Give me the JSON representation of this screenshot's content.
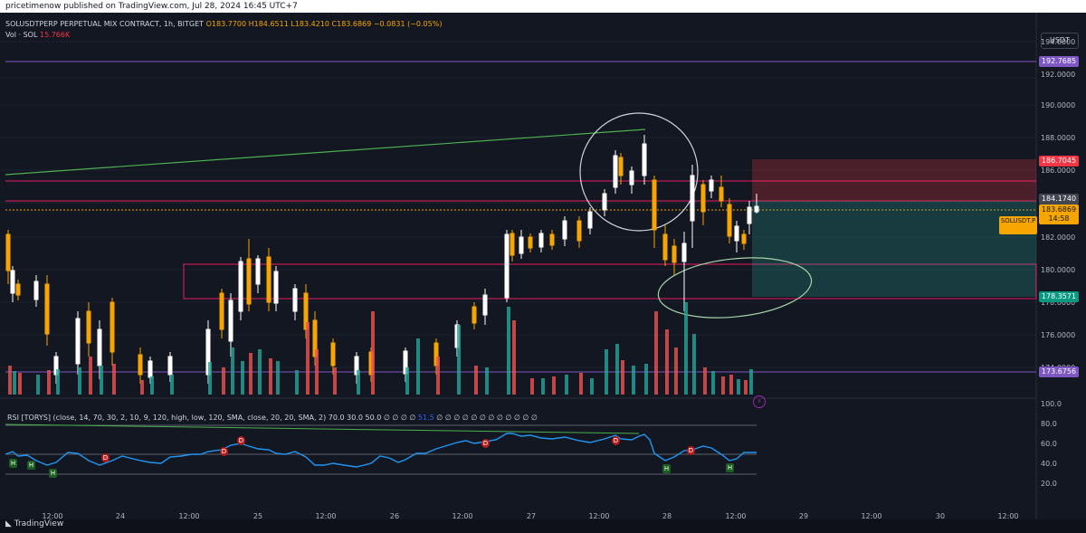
{
  "header": {
    "published_text": "pricetimenow published on TradingView.com, Jul 28, 2024 16:45 UTC+7"
  },
  "legend": {
    "symbol": "SOLUSDTPERP PERPETUAL MIX CONTRACT, 1h, BITGET",
    "open": "O183.7700",
    "high": "H184.6511",
    "low": "L183.4210",
    "close": "C183.6869",
    "change": "−0.0831 (−0.05%)",
    "volume_label": "Vol · SOL",
    "volume_value": "15.766K"
  },
  "rsi_legend": {
    "text": "RSI [TORYS] (close, 14, 70, 30, 2, 10, 9, 120, high, low, 120, SMA, close, 20, 20, SMA, 2)  70.0  30.0  50.0  ∅  ∅  ∅  ∅",
    "value": "51.5",
    "trail": "∅  ∅  ∅  ∅  ∅  ∅  ∅  ∅  ∅  ∅  ∅  ∅"
  },
  "currency_button": "USDT",
  "price_axis": [
    "194.0000",
    "192.0000",
    "190.0000",
    "188.0000",
    "186.0000",
    "182.0000",
    "180.0000",
    "178.0000",
    "176.0000",
    "174.0000"
  ],
  "price_labels": {
    "level_top": "192.7685",
    "target": "186.7045",
    "entry": "184.1740",
    "current": "183.6869",
    "countdown": "14:58",
    "stop": "178.3571",
    "level_bottom": "173.6756"
  },
  "symbol_badge": "SOLUSDT.P",
  "rsi_axis": [
    "100.0",
    "80.0",
    "60.0",
    "40.0",
    "20.0"
  ],
  "time_axis": [
    "12:00",
    "24",
    "12:00",
    "25",
    "12:00",
    "26",
    "12:00",
    "27",
    "12:00",
    "28",
    "12:00",
    "29",
    "12:00",
    "30",
    "12:00"
  ],
  "rsi_markers": [
    "H",
    "H",
    "H",
    "D",
    "D",
    "D",
    "D",
    "D",
    "H",
    "D",
    "H"
  ],
  "lightning_icon": "⚡",
  "footer": {
    "brand": "TradingView"
  },
  "colors": {
    "up": "#ffffff",
    "down": "#f7a600",
    "vol_up": "#26a69a",
    "vol_down": "#ef5350",
    "rsi_line": "#2196f3",
    "trend": "#4caf50",
    "zone": "#e91e63",
    "level": "#7e57c2"
  }
}
